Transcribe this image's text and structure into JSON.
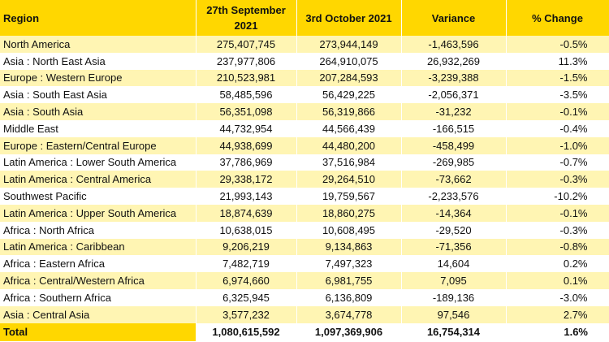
{
  "header": {
    "region": "Region",
    "col1": "27th September 2021",
    "col2": "3rd October 2021",
    "col3": "Variance",
    "col4": "% Change"
  },
  "rows": [
    {
      "region": "North America",
      "sep": "275,407,745",
      "oct": "273,944,149",
      "variance": "-1,463,596",
      "pct": "-0.5%"
    },
    {
      "region": "Asia : North East Asia",
      "sep": "237,977,806",
      "oct": "264,910,075",
      "variance": "26,932,269",
      "pct": "11.3%"
    },
    {
      "region": "Europe : Western Europe",
      "sep": "210,523,981",
      "oct": "207,284,593",
      "variance": "-3,239,388",
      "pct": "-1.5%"
    },
    {
      "region": "Asia : South East Asia",
      "sep": "58,485,596",
      "oct": "56,429,225",
      "variance": "-2,056,371",
      "pct": "-3.5%"
    },
    {
      "region": "Asia : South Asia",
      "sep": "56,351,098",
      "oct": "56,319,866",
      "variance": "-31,232",
      "pct": "-0.1%"
    },
    {
      "region": "Middle East",
      "sep": "44,732,954",
      "oct": "44,566,439",
      "variance": "-166,515",
      "pct": "-0.4%"
    },
    {
      "region": "Europe : Eastern/Central Europe",
      "sep": "44,938,699",
      "oct": "44,480,200",
      "variance": "-458,499",
      "pct": "-1.0%"
    },
    {
      "region": "Latin America : Lower South America",
      "sep": "37,786,969",
      "oct": "37,516,984",
      "variance": "-269,985",
      "pct": "-0.7%"
    },
    {
      "region": "Latin America : Central America",
      "sep": "29,338,172",
      "oct": "29,264,510",
      "variance": "-73,662",
      "pct": "-0.3%"
    },
    {
      "region": "Southwest Pacific",
      "sep": "21,993,143",
      "oct": "19,759,567",
      "variance": "-2,233,576",
      "pct": "-10.2%"
    },
    {
      "region": "Latin America : Upper South America",
      "sep": "18,874,639",
      "oct": "18,860,275",
      "variance": "-14,364",
      "pct": "-0.1%"
    },
    {
      "region": "Africa : North Africa",
      "sep": "10,638,015",
      "oct": "10,608,495",
      "variance": "-29,520",
      "pct": "-0.3%"
    },
    {
      "region": "Latin America : Caribbean",
      "sep": "9,206,219",
      "oct": "9,134,863",
      "variance": "-71,356",
      "pct": "-0.8%"
    },
    {
      "region": "Africa : Eastern Africa",
      "sep": "7,482,719",
      "oct": "7,497,323",
      "variance": "14,604",
      "pct": "0.2%"
    },
    {
      "region": "Africa : Central/Western Africa",
      "sep": "6,974,660",
      "oct": "6,981,755",
      "variance": "7,095",
      "pct": "0.1%"
    },
    {
      "region": "Africa : Southern Africa",
      "sep": "6,325,945",
      "oct": "6,136,809",
      "variance": "-189,136",
      "pct": "-3.0%"
    },
    {
      "region": "Asia : Central Asia",
      "sep": "3,577,232",
      "oct": "3,674,778",
      "variance": "97,546",
      "pct": "2.7%"
    }
  ],
  "total": {
    "region": "Total",
    "sep": "1,080,615,592",
    "oct": "1,097,369,906",
    "variance": "16,754,314",
    "pct": "1.6%"
  },
  "colors": {
    "header_bg": "#ffd700",
    "row_odd_bg": "#fff5b3",
    "row_even_bg": "#ffffff"
  }
}
